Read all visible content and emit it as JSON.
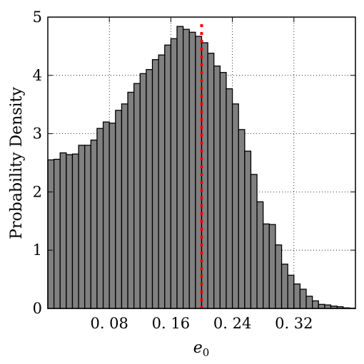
{
  "chart_data": {
    "type": "bar",
    "title": "",
    "xlabel_main": "e",
    "xlabel_sub": "0",
    "ylabel": "Probability Density",
    "xlim": [
      0.0,
      0.4
    ],
    "ylim": [
      0,
      5
    ],
    "xticks": [
      0.08,
      0.16,
      0.24,
      0.32
    ],
    "xtick_labels": [
      "0. 08",
      "0. 16",
      "0. 24",
      "0. 32"
    ],
    "yticks": [
      0,
      1,
      2,
      3,
      4,
      5
    ],
    "ytick_labels": [
      "0",
      "1",
      "2",
      "3",
      "4",
      "5"
    ],
    "grid": true,
    "bin_start": 0.0,
    "bin_width": 0.008,
    "values": [
      2.55,
      2.56,
      2.67,
      2.64,
      2.65,
      2.8,
      2.8,
      2.89,
      3.09,
      3.2,
      3.18,
      3.4,
      3.51,
      3.71,
      3.86,
      4.03,
      4.1,
      4.27,
      4.35,
      4.52,
      4.63,
      4.84,
      4.79,
      4.74,
      4.67,
      4.56,
      4.38,
      4.16,
      4.05,
      3.77,
      3.51,
      3.07,
      2.7,
      2.3,
      1.83,
      1.45,
      1.44,
      1.09,
      0.76,
      0.57,
      0.42,
      0.33,
      0.21,
      0.13,
      0.07,
      0.06,
      0.04,
      0.03,
      0.01,
      0.005
    ],
    "reference_line": {
      "x": 0.2,
      "style": "dotted",
      "color": "#ff0000"
    },
    "colors": {
      "bar_fill": "#808080",
      "bar_edge": "#000000",
      "grid": "#000000",
      "reference": "#ff0000"
    }
  }
}
